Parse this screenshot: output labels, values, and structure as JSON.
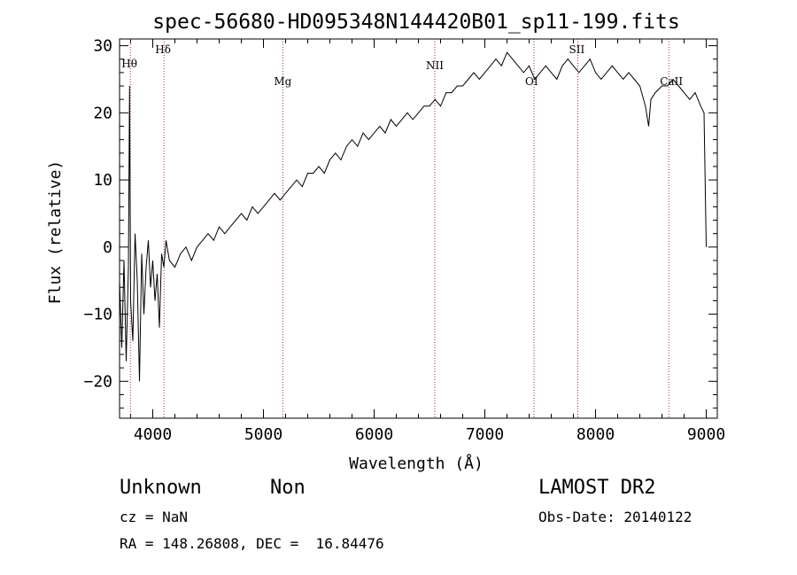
{
  "chart_data": {
    "type": "line",
    "title": "spec-56680-HD095348N144420B01_sp11-199.fits",
    "xlabel": "Wavelength (Å)",
    "ylabel": "Flux (relative)",
    "xlim": [
      3700,
      9100
    ],
    "ylim": [
      -25.5,
      31
    ],
    "xticks": [
      4000,
      5000,
      6000,
      7000,
      8000,
      9000
    ],
    "yticks": [
      -20,
      -10,
      0,
      10,
      20,
      30
    ],
    "grid": false,
    "series": [
      {
        "x": [
          3700,
          3720,
          3740,
          3760,
          3780,
          3790,
          3800,
          3820,
          3840,
          3860,
          3880,
          3900,
          3920,
          3940,
          3960,
          3980,
          4000,
          4020,
          4040,
          4060,
          4080,
          4100,
          4120,
          4150,
          4200,
          4250,
          4300,
          4350,
          4400,
          4450,
          4500,
          4550,
          4600,
          4650,
          4700,
          4750,
          4800,
          4850,
          4900,
          4950,
          5000,
          5050,
          5100,
          5150,
          5200,
          5250,
          5300,
          5350,
          5400,
          5450,
          5500,
          5550,
          5600,
          5650,
          5700,
          5750,
          5800,
          5850,
          5900,
          5950,
          6000,
          6050,
          6100,
          6150,
          6200,
          6250,
          6300,
          6350,
          6400,
          6450,
          6500,
          6550,
          6600,
          6650,
          6700,
          6750,
          6800,
          6850,
          6900,
          6950,
          7000,
          7050,
          7100,
          7150,
          7200,
          7250,
          7300,
          7350,
          7400,
          7450,
          7500,
          7550,
          7600,
          7650,
          7700,
          7750,
          7800,
          7850,
          7900,
          7950,
          8000,
          8050,
          8100,
          8150,
          8200,
          8250,
          8300,
          8350,
          8400,
          8450,
          8480,
          8500,
          8540,
          8600,
          8650,
          8700,
          8750,
          8800,
          8850,
          8900,
          8950,
          8980,
          9000
        ],
        "y": [
          -5,
          -15,
          -2,
          -17,
          -3,
          24,
          -8,
          -14,
          2,
          -5,
          -20,
          -1,
          -10,
          -3,
          1,
          -6,
          -2,
          -8,
          -4,
          -12,
          -1,
          -3,
          1,
          -2,
          -3,
          -1,
          0,
          -2,
          0,
          1,
          2,
          1,
          3,
          2,
          3,
          4,
          5,
          4,
          6,
          5,
          6,
          7,
          8,
          7,
          8,
          9,
          10,
          9,
          11,
          11,
          12,
          11,
          13,
          14,
          13,
          15,
          16,
          15,
          17,
          16,
          17,
          18,
          17,
          19,
          18,
          19,
          20,
          19,
          20,
          21,
          21,
          22,
          21,
          23,
          23,
          24,
          24,
          25,
          26,
          25,
          26,
          27,
          28,
          27,
          29,
          28,
          27,
          26,
          27,
          25,
          26,
          27,
          26,
          25,
          27,
          28,
          27,
          26,
          27,
          28,
          26,
          25,
          26,
          27,
          26,
          25,
          26,
          25,
          24,
          21,
          18,
          22,
          23,
          24,
          24,
          25,
          24,
          23,
          22,
          23,
          21,
          20,
          0
        ]
      }
    ],
    "lines": [
      {
        "label": "Hθ",
        "x": 3798
      },
      {
        "label": "Hδ",
        "x": 4102
      },
      {
        "label": "Mg",
        "x": 5175
      },
      {
        "label": "NII",
        "x": 6548
      },
      {
        "label": "OI",
        "x": 7444
      },
      {
        "label": "SII",
        "x": 7840
      },
      {
        "label": "CaII",
        "x": 8662
      }
    ]
  },
  "info": {
    "class": "Unknown",
    "subclass": "Non",
    "survey": "LAMOST DR2",
    "cz": "cz = NaN",
    "obs_date": "Obs-Date: 20140122",
    "coords": "RA = 148.26808, DEC =  16.84476"
  }
}
